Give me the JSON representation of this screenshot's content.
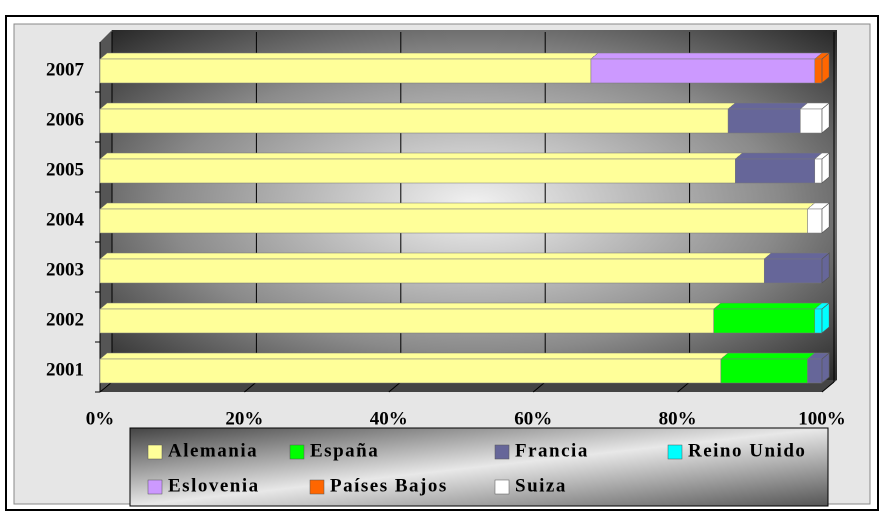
{
  "chart_data": {
    "type": "stacked_barh",
    "categories": [
      "2001",
      "2002",
      "2003",
      "2004",
      "2005",
      "2006",
      "2007"
    ],
    "series": [
      {
        "name": "Alemania",
        "color": "#ffff99",
        "values": [
          86,
          85,
          92,
          98,
          88,
          87,
          68
        ]
      },
      {
        "name": "España",
        "color": "#00ff00",
        "values": [
          12,
          14,
          0,
          0,
          0,
          0,
          0
        ]
      },
      {
        "name": "Francia",
        "color": "#666699",
        "values": [
          2,
          0,
          8,
          0,
          11,
          10,
          0
        ]
      },
      {
        "name": "Reino Unido",
        "color": "#00ffff",
        "values": [
          0,
          1,
          0,
          0,
          0,
          0,
          0
        ]
      },
      {
        "name": "Eslovenia",
        "color": "#cc99ff",
        "values": [
          0,
          0,
          0,
          0,
          0,
          0,
          31
        ]
      },
      {
        "name": "Países Bajos",
        "color": "#ff6600",
        "values": [
          0,
          0,
          0,
          0,
          0,
          0,
          1
        ]
      },
      {
        "name": "Suiza",
        "color": "#ffffff",
        "values": [
          0,
          0,
          0,
          2,
          1,
          3,
          0
        ]
      }
    ],
    "xlim": [
      0,
      100
    ],
    "xticks": [
      {
        "value": 0,
        "label": "0%"
      },
      {
        "value": 20,
        "label": "20%"
      },
      {
        "value": 40,
        "label": "40%"
      },
      {
        "value": 60,
        "label": "60%"
      },
      {
        "value": 80,
        "label": "80%"
      },
      {
        "value": 100,
        "label": "100%"
      }
    ],
    "grid": true,
    "legend": "bottom"
  }
}
